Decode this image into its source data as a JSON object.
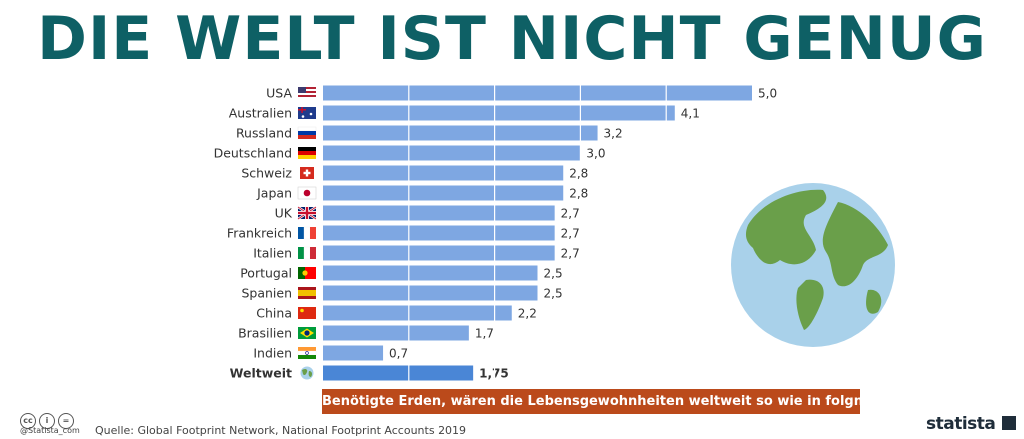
{
  "title": "DIE WELT IST NICHT GENUG",
  "chart_data": {
    "type": "bar",
    "orientation": "horizontal",
    "categories": [
      "USA",
      "Australien",
      "Russland",
      "Deutschland",
      "Schweiz",
      "Japan",
      "UK",
      "Frankreich",
      "Italien",
      "Portugal",
      "Spanien",
      "China",
      "Brasilien",
      "Indien",
      "Weltweit"
    ],
    "values": [
      5.0,
      4.1,
      3.2,
      3.0,
      2.8,
      2.8,
      2.7,
      2.7,
      2.7,
      2.5,
      2.5,
      2.2,
      1.7,
      0.7,
      1.75
    ],
    "value_labels": [
      "5,0",
      "4,1",
      "3,2",
      "3,0",
      "2,8",
      "2,8",
      "2,7",
      "2,7",
      "2,7",
      "2,5",
      "2,5",
      "2,2",
      "1,7",
      "0,7",
      "1,75"
    ],
    "highlight_category": "Weltweit",
    "xlim": [
      0,
      5
    ],
    "gridlines": [
      1,
      2,
      3,
      4
    ],
    "title": "DIE WELT IST NICHT GENUG",
    "legend": "Benötigte Erden, wären die Lebensgewohnheiten weltweit so wie in folgnden Ländern",
    "xlabel": "",
    "ylabel": ""
  },
  "flags": [
    "flag-us-icon",
    "flag-au-icon",
    "flag-ru-icon",
    "flag-de-icon",
    "flag-ch-icon",
    "flag-jp-icon",
    "flag-uk-icon",
    "flag-fr-icon",
    "flag-it-icon",
    "flag-pt-icon",
    "flag-es-icon",
    "flag-cn-icon",
    "flag-br-icon",
    "flag-in-icon",
    "globe-small-icon"
  ],
  "colors": {
    "title": "#0e6065",
    "bar": "#7ea7e2",
    "bar_highlight": "#4a86d6",
    "legend_bg": "#bb4a1b",
    "ocean": "#a9d1ea",
    "land": "#6a9f4a"
  },
  "footer": {
    "source": "Quelle: Global Footprint Network, National Footprint Accounts 2019",
    "handle": "@Statista_com",
    "brand": "statista"
  }
}
